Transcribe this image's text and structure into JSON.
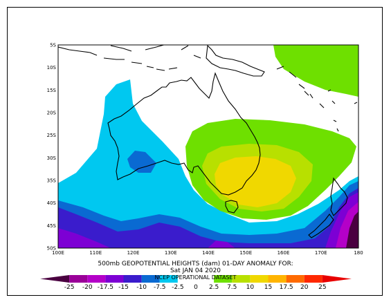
{
  "title_line1": "500mb GEOPOTENTIAL HEIGHTS (dam)    01-DAY ANOMALY FOR:",
  "title_line2": "Sat JAN 04 2020",
  "source_label": "NCEP OPERATIONAL DATASET",
  "chart_data": {
    "type": "heatmap",
    "variable": "500mb geopotential height anomaly",
    "units": "dam",
    "xlim": [
      100,
      180
    ],
    "ylim": [
      -50,
      -5
    ],
    "x_ticks": [
      "100E",
      "110E",
      "120E",
      "130E",
      "140E",
      "150E",
      "160E",
      "170E",
      "180"
    ],
    "y_ticks": [
      "5S",
      "10S",
      "15S",
      "20S",
      "25S",
      "30S",
      "35S",
      "40S",
      "45S",
      "50S"
    ],
    "colorbar": {
      "labels": [
        "-25",
        "-20",
        "-17.5",
        "-15",
        "-10",
        "-7.5",
        "-2.5",
        "0",
        "2.5",
        "7.5",
        "10",
        "15",
        "17.5",
        "20",
        "25"
      ],
      "colors": [
        "#4a0040",
        "#9a0098",
        "#b400c8",
        "#7d00d4",
        "#3a1ccc",
        "#0a6ad2",
        "#00c8f0",
        "#ffffff",
        "#ffffff",
        "#6ee000",
        "#b8e000",
        "#f0d800",
        "#ffb400",
        "#ff6a00",
        "#ff2800",
        "#e80000"
      ]
    },
    "features": [
      {
        "name": "positive anomaly over eastern Australia",
        "center": [
          150,
          -33
        ],
        "max_range": "10 to 15"
      },
      {
        "name": "positive anomaly north of New Zealand",
        "center": [
          165,
          -8
        ],
        "range": "2.5 to 7.5"
      },
      {
        "name": "weak negative anomaly over western Australia",
        "center": [
          120,
          -30
        ],
        "range": "-7.5 to -2.5"
      },
      {
        "name": "negative anomaly over Southern Ocean and New Zealand",
        "center": [
          175,
          -47
        ],
        "min_range": "-25 to -20"
      }
    ]
  },
  "colors": {
    "positive_light": "#6ee000",
    "positive_mid": "#b8e000",
    "positive_strong": "#f0d800",
    "negative_light": "#00c8f0",
    "negative_mid": "#0a6ad2",
    "negative_strong": "#3a1ccc",
    "negative_deep": "#7d00d4",
    "negative_deeper": "#b400c8",
    "negative_extreme": "#4a0040"
  }
}
